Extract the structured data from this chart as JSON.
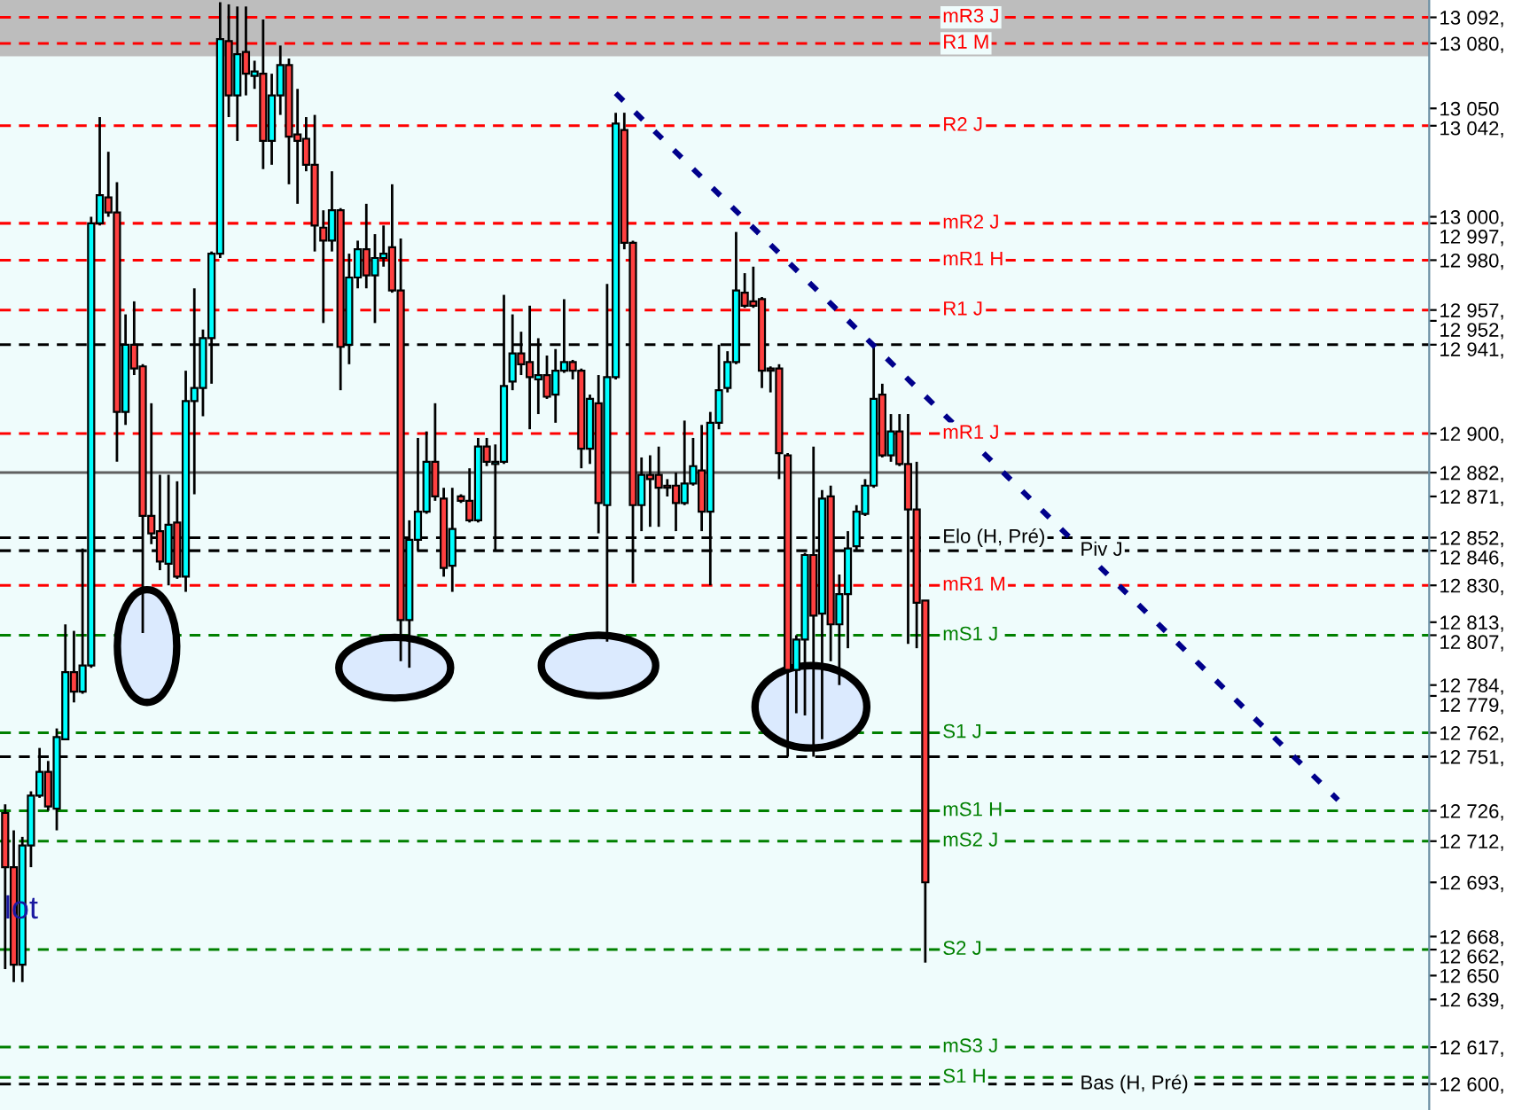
{
  "chart_data": {
    "type": "candlestick",
    "categories": [
      null,
      null,
      null,
      null,
      null,
      null,
      null,
      null,
      null,
      null,
      null,
      null,
      null,
      null,
      null,
      null,
      null,
      null,
      null,
      null,
      null,
      null,
      null,
      null,
      null,
      null,
      null,
      null,
      null,
      null,
      null,
      null,
      null,
      null,
      null,
      null,
      null,
      null,
      null,
      null,
      null,
      null,
      null,
      null,
      null,
      null,
      null,
      null,
      null,
      null,
      null,
      null,
      null,
      null,
      null,
      null,
      null,
      null,
      null,
      null,
      null,
      null,
      null,
      null,
      null,
      null,
      null,
      null,
      null,
      null,
      null,
      null,
      null,
      null,
      null,
      null,
      null,
      null,
      null,
      null,
      null,
      null,
      null,
      null,
      null,
      null,
      null,
      null,
      null,
      null,
      null,
      null,
      null,
      null,
      null,
      null,
      null,
      null,
      null,
      null,
      null,
      null,
      null,
      null,
      null,
      null,
      null,
      null,
      null,
      null,
      null,
      null,
      null,
      null,
      null,
      null,
      null,
      null,
      null,
      null,
      null,
      null,
      null,
      null,
      null,
      null,
      null,
      null,
      null,
      null,
      null,
      null,
      null,
      null,
      null,
      null,
      null,
      null,
      null,
      null,
      null,
      null,
      null,
      null,
      null,
      null,
      null,
      null,
      null,
      null,
      null,
      null,
      null,
      null,
      null,
      null,
      null,
      null,
      null,
      null,
      null,
      null,
      null,
      null,
      null,
      null
    ],
    "ohlc": [
      [
        12725,
        12729,
        12653,
        12700
      ],
      [
        12700,
        12717,
        12647,
        12655
      ],
      [
        12655,
        12714,
        12647,
        12710
      ],
      [
        12710,
        12735,
        12700,
        12733
      ],
      [
        12733,
        12755,
        12732,
        12744
      ],
      [
        12744,
        12749,
        12726,
        12728
      ],
      [
        12727,
        12764,
        12717,
        12760
      ],
      [
        12759,
        12812,
        12759,
        12790
      ],
      [
        12790,
        12809,
        12776,
        12781
      ],
      [
        12781,
        12847,
        12780,
        12793
      ],
      [
        12793,
        13000,
        12792,
        12997
      ],
      [
        12997,
        13046,
        12996,
        13010
      ],
      [
        13009,
        13030,
        13000,
        13002
      ],
      [
        13002,
        13016,
        12887,
        12910
      ],
      [
        12910,
        12955,
        12904,
        12941
      ],
      [
        12941,
        12961,
        12927,
        12930
      ],
      [
        12931,
        12932,
        12808,
        12862
      ],
      [
        12862,
        12914,
        12849,
        12854
      ],
      [
        12855,
        12881,
        12837,
        12841
      ],
      [
        12840,
        12881,
        12830,
        12858
      ],
      [
        12859,
        12878,
        12833,
        12834
      ],
      [
        12834,
        12929,
        12827,
        12915
      ],
      [
        12915,
        12967,
        12872,
        12921
      ],
      [
        12921,
        12948,
        12908,
        12944
      ],
      [
        12944,
        12984,
        12923,
        12983
      ],
      [
        12983,
        13099,
        12981,
        13082
      ],
      [
        13081,
        13098,
        13046,
        13056
      ],
      [
        13056,
        13097,
        13035,
        13075
      ],
      [
        13076,
        13097,
        13056,
        13066
      ],
      [
        13065,
        13072,
        13059,
        13067
      ],
      [
        13066,
        13091,
        13022,
        13035
      ],
      [
        13035,
        13066,
        13024,
        13056
      ],
      [
        13056,
        13079,
        13047,
        13070
      ],
      [
        13070,
        13073,
        13015,
        13037
      ],
      [
        13038,
        13059,
        13006,
        13035
      ],
      [
        13036,
        13046,
        13021,
        13024
      ],
      [
        13024,
        13047,
        12984,
        12996
      ],
      [
        12995,
        13003,
        12951,
        12989
      ],
      [
        12989,
        13021,
        12984,
        13003
      ],
      [
        13003,
        13004,
        12920,
        12940
      ],
      [
        12941,
        12983,
        12932,
        12972
      ],
      [
        12972,
        12989,
        12967,
        12985
      ],
      [
        12985,
        13006,
        12967,
        12973
      ],
      [
        12973,
        12992,
        12951,
        12981
      ],
      [
        12981,
        12996,
        12977,
        12983
      ],
      [
        12986,
        13015,
        12965,
        12966
      ],
      [
        12966,
        12990,
        12795,
        12814
      ],
      [
        12814,
        12860,
        12792,
        12851
      ],
      [
        12851,
        12898,
        12846,
        12864
      ],
      [
        12864,
        12901,
        12863,
        12887
      ],
      [
        12887,
        12914,
        12869,
        12871
      ],
      [
        12870,
        12875,
        12834,
        12838
      ],
      [
        12839,
        12875,
        12827,
        12856
      ],
      [
        12871,
        12872,
        12868,
        12869
      ],
      [
        12869,
        12884,
        12859,
        12860
      ],
      [
        12860,
        12898,
        12859,
        12894
      ],
      [
        12894,
        12898,
        12885,
        12887
      ],
      [
        12886,
        12895,
        12846,
        12887
      ],
      [
        12887,
        12964,
        12886,
        12922
      ],
      [
        12924,
        12955,
        12920,
        12937
      ],
      [
        12937,
        12947,
        12927,
        12932
      ],
      [
        12933,
        12959,
        12902,
        12926
      ],
      [
        12925,
        12944,
        12909,
        12927
      ],
      [
        12927,
        12936,
        12916,
        12917
      ],
      [
        12918,
        12939,
        12905,
        12929
      ],
      [
        12929,
        12962,
        12928,
        12933
      ],
      [
        12933,
        12934,
        12925,
        12929
      ],
      [
        12929,
        12930,
        12884,
        12893
      ],
      [
        12893,
        12918,
        12886,
        12916
      ],
      [
        12914,
        12927,
        12854,
        12868
      ],
      [
        12867,
        12969,
        12804,
        12926
      ],
      [
        12926,
        13048,
        12925,
        13043
      ],
      [
        13040,
        13048,
        12985,
        12988
      ],
      [
        12988,
        12989,
        12831,
        12867
      ],
      [
        12867,
        12889,
        12855,
        12881
      ],
      [
        12881,
        12890,
        12857,
        12879
      ],
      [
        12881,
        12894,
        12857,
        12875
      ],
      [
        12876,
        12879,
        12871,
        12875
      ],
      [
        12876,
        12882,
        12855,
        12868
      ],
      [
        12868,
        12906,
        12867,
        12877
      ],
      [
        12877,
        12898,
        12876,
        12885
      ],
      [
        12883,
        12904,
        12855,
        12864
      ],
      [
        12864,
        12910,
        12830,
        12905
      ],
      [
        12905,
        12941,
        12902,
        12920
      ],
      [
        12921,
        12938,
        12919,
        12933
      ],
      [
        12933,
        12993,
        12932,
        12966
      ],
      [
        12965,
        12974,
        12958,
        12959
      ],
      [
        12961,
        12977,
        12958,
        12959
      ],
      [
        12962,
        12963,
        12921,
        12929
      ],
      [
        12930,
        12931,
        12919,
        12929
      ],
      [
        12930,
        12932,
        12879,
        12891
      ],
      [
        12890,
        12891,
        12751,
        12791
      ],
      [
        12791,
        12807,
        12771,
        12805
      ],
      [
        12805,
        12845,
        12770,
        12844
      ],
      [
        12844,
        12894,
        12751,
        12816
      ],
      [
        12817,
        12874,
        12759,
        12870
      ],
      [
        12871,
        12876,
        12795,
        12812
      ],
      [
        12812,
        12835,
        12784,
        12826
      ],
      [
        12826,
        12855,
        12801,
        12847
      ],
      [
        12848,
        12867,
        12846,
        12864
      ],
      [
        12863,
        12879,
        12862,
        12876
      ],
      [
        12876,
        12940,
        12875,
        12916
      ],
      [
        12918,
        12923,
        12889,
        12890
      ],
      [
        12890,
        12909,
        12887,
        12901
      ],
      [
        12901,
        12909,
        12885,
        12886
      ],
      [
        12886,
        12909,
        12803,
        12865
      ],
      [
        12865,
        12887,
        12801,
        12822
      ],
      [
        12823,
        12823,
        12656,
        12693
      ],
      null,
      null,
      null,
      null,
      null,
      null,
      null,
      null,
      null,
      null,
      null,
      null,
      null,
      null,
      null,
      null,
      null,
      null,
      null,
      null,
      null,
      null,
      null,
      null,
      null,
      null,
      null,
      null,
      null,
      null,
      null,
      null,
      null,
      null,
      null,
      null,
      null,
      null,
      null,
      null,
      null,
      null,
      null,
      null,
      null,
      null,
      null,
      null,
      null,
      null,
      null,
      null,
      null,
      null,
      null,
      null,
      null,
      null
    ],
    "colors": [
      "#ff4040",
      "#ff4040",
      "#00ffff",
      "#00ffff",
      "#00ffff",
      "#ff4040",
      "#00ffff",
      "#00ffff",
      "#ff4040",
      "#00ffff",
      "#00ffff",
      "#00ffff",
      "#ff4040",
      "#ff4040",
      "#00ffff",
      "#ff4040",
      "#ff4040",
      "#ff4040",
      "#ff4040",
      "#00ffff",
      "#ff4040",
      "#00ffff",
      "#00ffff",
      "#00ffff",
      "#00ffff",
      "#00ffff",
      "#ff4040",
      "#00ffff",
      "#ff4040",
      "#00ffff",
      "#ff4040",
      "#00ffff",
      "#00ffff",
      "#ff4040",
      "#ff4040",
      "#ff4040",
      "#ff4040",
      "#ff4040",
      "#00ffff",
      "#ff4040",
      "#00ffff",
      "#00ffff",
      "#ff4040",
      "#00ffff",
      "#00ffff",
      "#ff4040",
      "#ff4040",
      "#00ffff",
      "#00ffff",
      "#00ffff",
      "#ff4040",
      "#ff4040",
      "#00ffff",
      "#ff4040",
      "#ff4040",
      "#00ffff",
      "#ff4040",
      "#00ffff",
      "#00ffff",
      "#00ffff",
      "#ff4040",
      "#ff4040",
      "#00ffff",
      "#ff4040",
      "#00ffff",
      "#00ffff",
      "#ff4040",
      "#ff4040",
      "#00ffff",
      "#ff4040",
      "#00ffff",
      "#00ffff",
      "#ff4040",
      "#ff4040",
      "#00ffff",
      "#ff4040",
      "#ff4040",
      "#ff4040",
      "#ff4040",
      "#00ffff",
      "#00ffff",
      "#ff4040",
      "#00ffff",
      "#00ffff",
      "#00ffff",
      "#00ffff",
      "#ff4040",
      "#ff4040",
      "#ff4040",
      "#ff4040",
      "#ff4040",
      "#ff4040",
      "#00ffff",
      "#00ffff",
      "#ff4040",
      "#00ffff",
      "#ff4040",
      "#00ffff",
      "#00ffff",
      "#00ffff",
      "#00ffff",
      "#00ffff",
      "#ff4040",
      "#00ffff",
      "#ff4040",
      "#ff4040",
      "#ff4040",
      "#ff4040",
      null,
      null,
      null,
      null,
      null,
      null,
      null,
      null,
      null,
      null,
      null,
      null,
      null,
      null,
      null,
      null,
      null,
      null,
      null,
      null,
      null,
      null,
      null,
      null,
      null,
      null,
      null,
      null,
      null,
      null,
      null,
      null,
      null,
      null,
      null,
      null,
      null,
      null,
      null,
      null,
      null,
      null,
      null,
      null,
      null,
      null,
      null,
      null,
      null,
      null,
      null,
      null,
      null,
      null,
      null,
      null,
      null,
      null
    ],
    "series": [
      {
        "type": "line",
        "color": "#00008b",
        "line_style": "dotted",
        "values": [
          null,
          null,
          null,
          null,
          null,
          null,
          null,
          null,
          null,
          null,
          null,
          null,
          null,
          null,
          null,
          null,
          null,
          null,
          null,
          null,
          null,
          null,
          null,
          null,
          null,
          null,
          null,
          null,
          null,
          null,
          null,
          null,
          null,
          null,
          null,
          null,
          null,
          null,
          null,
          null,
          null,
          null,
          null,
          null,
          null,
          null,
          null,
          null,
          null,
          null,
          null,
          null,
          null,
          null,
          null,
          null,
          null,
          null,
          null,
          null,
          null,
          null,
          null,
          null,
          null,
          null,
          null,
          null,
          null,
          null,
          null,
          13057,
          null,
          null,
          null,
          null,
          null,
          null,
          null,
          null,
          null,
          null,
          null,
          null,
          null,
          null,
          null,
          null,
          null,
          null,
          null,
          null,
          null,
          null,
          null,
          null,
          null,
          null,
          null,
          null,
          null,
          null,
          null,
          null,
          null,
          null,
          null,
          null,
          null,
          null,
          null,
          null,
          null,
          null,
          null,
          null,
          null,
          null,
          null,
          null,
          null,
          null,
          null,
          null,
          null,
          null,
          null,
          null,
          null,
          null,
          null,
          null,
          null,
          null,
          null,
          null,
          null,
          null,
          null,
          null,
          null,
          null,
          null,
          null,
          null,
          null,
          null,
          null,
          null,
          null,
          null,
          null,
          null,
          null,
          null,
          12731,
          null,
          null,
          null,
          null,
          null,
          null,
          null,
          null,
          null,
          null
        ]
      }
    ],
    "ylim": [
      12588,
      13100
    ],
    "yticks": [
      {
        "value": 13092,
        "label": "13 092,"
      },
      {
        "value": 13080,
        "label": "13 080,"
      },
      {
        "value": 13050,
        "label": "13 050"
      },
      {
        "value": 13042,
        "label": "13 042,"
      },
      {
        "value": 13000,
        "label": "13 000,"
      },
      {
        "value": 12997,
        "label": "12 997,"
      },
      {
        "value": 12980,
        "label": "12 980,"
      },
      {
        "value": 12957,
        "label": "12 957,"
      },
      {
        "value": 12952,
        "label": "12 952,"
      },
      {
        "value": 12941,
        "label": "12 941,"
      },
      {
        "value": 12900,
        "label": "12 900,"
      },
      {
        "value": 12882,
        "label": "12 882,"
      },
      {
        "value": 12871,
        "label": "12 871,"
      },
      {
        "value": 12852,
        "label": "12 852,"
      },
      {
        "value": 12846,
        "label": "12 846,"
      },
      {
        "value": 12830,
        "label": "12 830,"
      },
      {
        "value": 12813,
        "label": "12 813,"
      },
      {
        "value": 12807,
        "label": "12 807,"
      },
      {
        "value": 12784,
        "label": "12 784,"
      },
      {
        "value": 12779,
        "label": "12 779,"
      },
      {
        "value": 12762,
        "label": "12 762,"
      },
      {
        "value": 12751,
        "label": "12 751,"
      },
      {
        "value": 12726,
        "label": "12 726,"
      },
      {
        "value": 12712,
        "label": "12 712,"
      },
      {
        "value": 12693,
        "label": "12 693,"
      },
      {
        "value": 12668,
        "label": "12 668,"
      },
      {
        "value": 12662,
        "label": "12 662,"
      },
      {
        "value": 12650,
        "label": "12 650"
      },
      {
        "value": 12639,
        "label": "12 639,"
      },
      {
        "value": 12617,
        "label": "12 617,"
      },
      {
        "value": 12600,
        "label": "12 600,"
      }
    ],
    "tick_labels": "y",
    "grid": false,
    "bands": [
      {
        "axis": "y",
        "from": 13074,
        "to": 13100,
        "color": "#bdbdbd"
      }
    ],
    "ref_lines": [
      {
        "axis": "y",
        "value": 13092,
        "label": "mR3 J",
        "color": "#ff0000",
        "line_style": "dashed"
      },
      {
        "axis": "y",
        "value": 13080,
        "label": "R1 M",
        "color": "#ff0000",
        "line_style": "dashed"
      },
      {
        "axis": "y",
        "value": 13042,
        "label": "R2 J",
        "color": "#ff0000",
        "line_style": "dashed"
      },
      {
        "axis": "y",
        "value": 12997,
        "label": "mR2 J",
        "color": "#ff0000",
        "line_style": "dashed"
      },
      {
        "axis": "y",
        "value": 12980,
        "label": "mR1 H",
        "color": "#ff0000",
        "line_style": "dashed"
      },
      {
        "axis": "y",
        "value": 12957,
        "label": "R1 J",
        "color": "#ff0000",
        "line_style": "dashed"
      },
      {
        "axis": "y",
        "value": 12941,
        "color": "#000000",
        "line_style": "dashed"
      },
      {
        "axis": "y",
        "value": 12900,
        "label": "mR1 J",
        "color": "#ff0000",
        "line_style": "dashed"
      },
      {
        "axis": "y",
        "value": 12882,
        "color": "#606060",
        "line_style": "solid"
      },
      {
        "axis": "y",
        "value": 12852,
        "label": "Elo (H, Pré)",
        "color": "#000000",
        "line_style": "dashed"
      },
      {
        "axis": "y",
        "value": 12846,
        "label": "Piv J",
        "color": "#000000",
        "line_style": "dashed"
      },
      {
        "axis": "y",
        "value": 12830,
        "label": "mR1 M",
        "color": "#ff0000",
        "line_style": "dashed"
      },
      {
        "axis": "y",
        "value": 12807,
        "label": "mS1 J",
        "color": "#008000",
        "line_style": "dashed"
      },
      {
        "axis": "y",
        "value": 12762,
        "label": "S1 J",
        "color": "#008000",
        "line_style": "dashed"
      },
      {
        "axis": "y",
        "value": 12751,
        "color": "#000000",
        "line_style": "dashed"
      },
      {
        "axis": "y",
        "value": 12726,
        "label": "mS1 H",
        "color": "#008000",
        "line_style": "dashed"
      },
      {
        "axis": "y",
        "value": 12712,
        "label": "mS2 J",
        "color": "#008000",
        "line_style": "dashed"
      },
      {
        "axis": "y",
        "value": 12662,
        "label": "S2 J",
        "color": "#008000",
        "line_style": "dashed"
      },
      {
        "axis": "y",
        "value": 12617,
        "label": "mS3 J",
        "color": "#008000",
        "line_style": "dashed"
      },
      {
        "axis": "y",
        "value": 12603,
        "label": "S1 H",
        "color": "#008000",
        "line_style": "dashed"
      },
      {
        "axis": "y",
        "value": 12600,
        "label": "Bas (H, Pré)",
        "color": "#000000",
        "line_style": "dashed"
      }
    ],
    "annotations": [
      "lot"
    ]
  }
}
